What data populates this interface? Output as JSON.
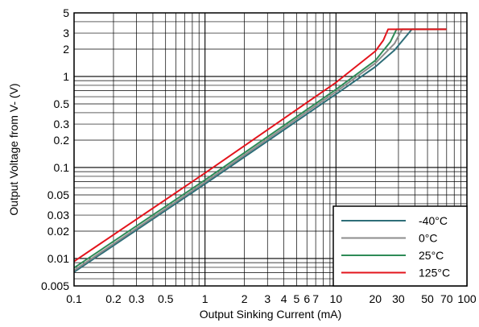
{
  "chart_data": {
    "type": "line",
    "xlabel": "Output Sinking Current (mA)",
    "ylabel": "Output Voltage from V- (V)",
    "x_scale": "log",
    "y_scale": "log",
    "xlim": [
      0.1,
      100
    ],
    "ylim": [
      0.005,
      5
    ],
    "grid": true,
    "legend_position": "bottom-right",
    "x_tick_labels": [
      {
        "value": 0.1,
        "label": "0.1"
      },
      {
        "value": 0.2,
        "label": "0.2"
      },
      {
        "value": 0.3,
        "label": "0.3"
      },
      {
        "value": 0.5,
        "label": "0.5"
      },
      {
        "value": 1,
        "label": "1"
      },
      {
        "value": 2,
        "label": "2"
      },
      {
        "value": 3,
        "label": "3"
      },
      {
        "value": 4,
        "label": "4"
      },
      {
        "value": 5,
        "label": "5"
      },
      {
        "value": 6,
        "label": "6"
      },
      {
        "value": 7,
        "label": "7"
      },
      {
        "value": 10,
        "label": "10"
      },
      {
        "value": 20,
        "label": "20"
      },
      {
        "value": 30,
        "label": "30"
      },
      {
        "value": 50,
        "label": "50"
      },
      {
        "value": 70,
        "label": "70"
      },
      {
        "value": 100,
        "label": "100"
      }
    ],
    "y_tick_labels": [
      {
        "value": 0.005,
        "label": "0.005"
      },
      {
        "value": 0.01,
        "label": "0.01"
      },
      {
        "value": 0.02,
        "label": "0.02"
      },
      {
        "value": 0.03,
        "label": "0.03"
      },
      {
        "value": 0.05,
        "label": "0.05"
      },
      {
        "value": 0.1,
        "label": "0.1"
      },
      {
        "value": 0.2,
        "label": "0.2"
      },
      {
        "value": 0.3,
        "label": "0.3"
      },
      {
        "value": 0.5,
        "label": "0.5"
      },
      {
        "value": 1,
        "label": "1"
      },
      {
        "value": 2,
        "label": "2"
      },
      {
        "value": 3,
        "label": "3"
      },
      {
        "value": 5,
        "label": "5"
      }
    ],
    "series": [
      {
        "name": "-40°C",
        "color": "#2e6e78",
        "x": [
          0.1,
          1,
          10,
          20,
          28,
          38,
          70
        ],
        "y": [
          0.0071,
          0.066,
          0.64,
          1.28,
          1.95,
          3.3,
          3.3
        ]
      },
      {
        "name": "0°C",
        "color": "#8c8c8c",
        "x": [
          0.1,
          1,
          10,
          20,
          28,
          32,
          70
        ],
        "y": [
          0.0074,
          0.069,
          0.68,
          1.4,
          2.3,
          3.3,
          3.3
        ]
      },
      {
        "name": "25°C",
        "color": "#2e8b57",
        "x": [
          0.1,
          1,
          10,
          20,
          26,
          29,
          70
        ],
        "y": [
          0.0079,
          0.073,
          0.72,
          1.5,
          2.4,
          3.3,
          3.3
        ]
      },
      {
        "name": "125°C",
        "color": "#e3141c",
        "x": [
          0.1,
          1,
          10,
          20,
          23,
          25,
          70
        ],
        "y": [
          0.0093,
          0.087,
          0.86,
          1.9,
          2.5,
          3.3,
          3.3
        ]
      }
    ]
  }
}
